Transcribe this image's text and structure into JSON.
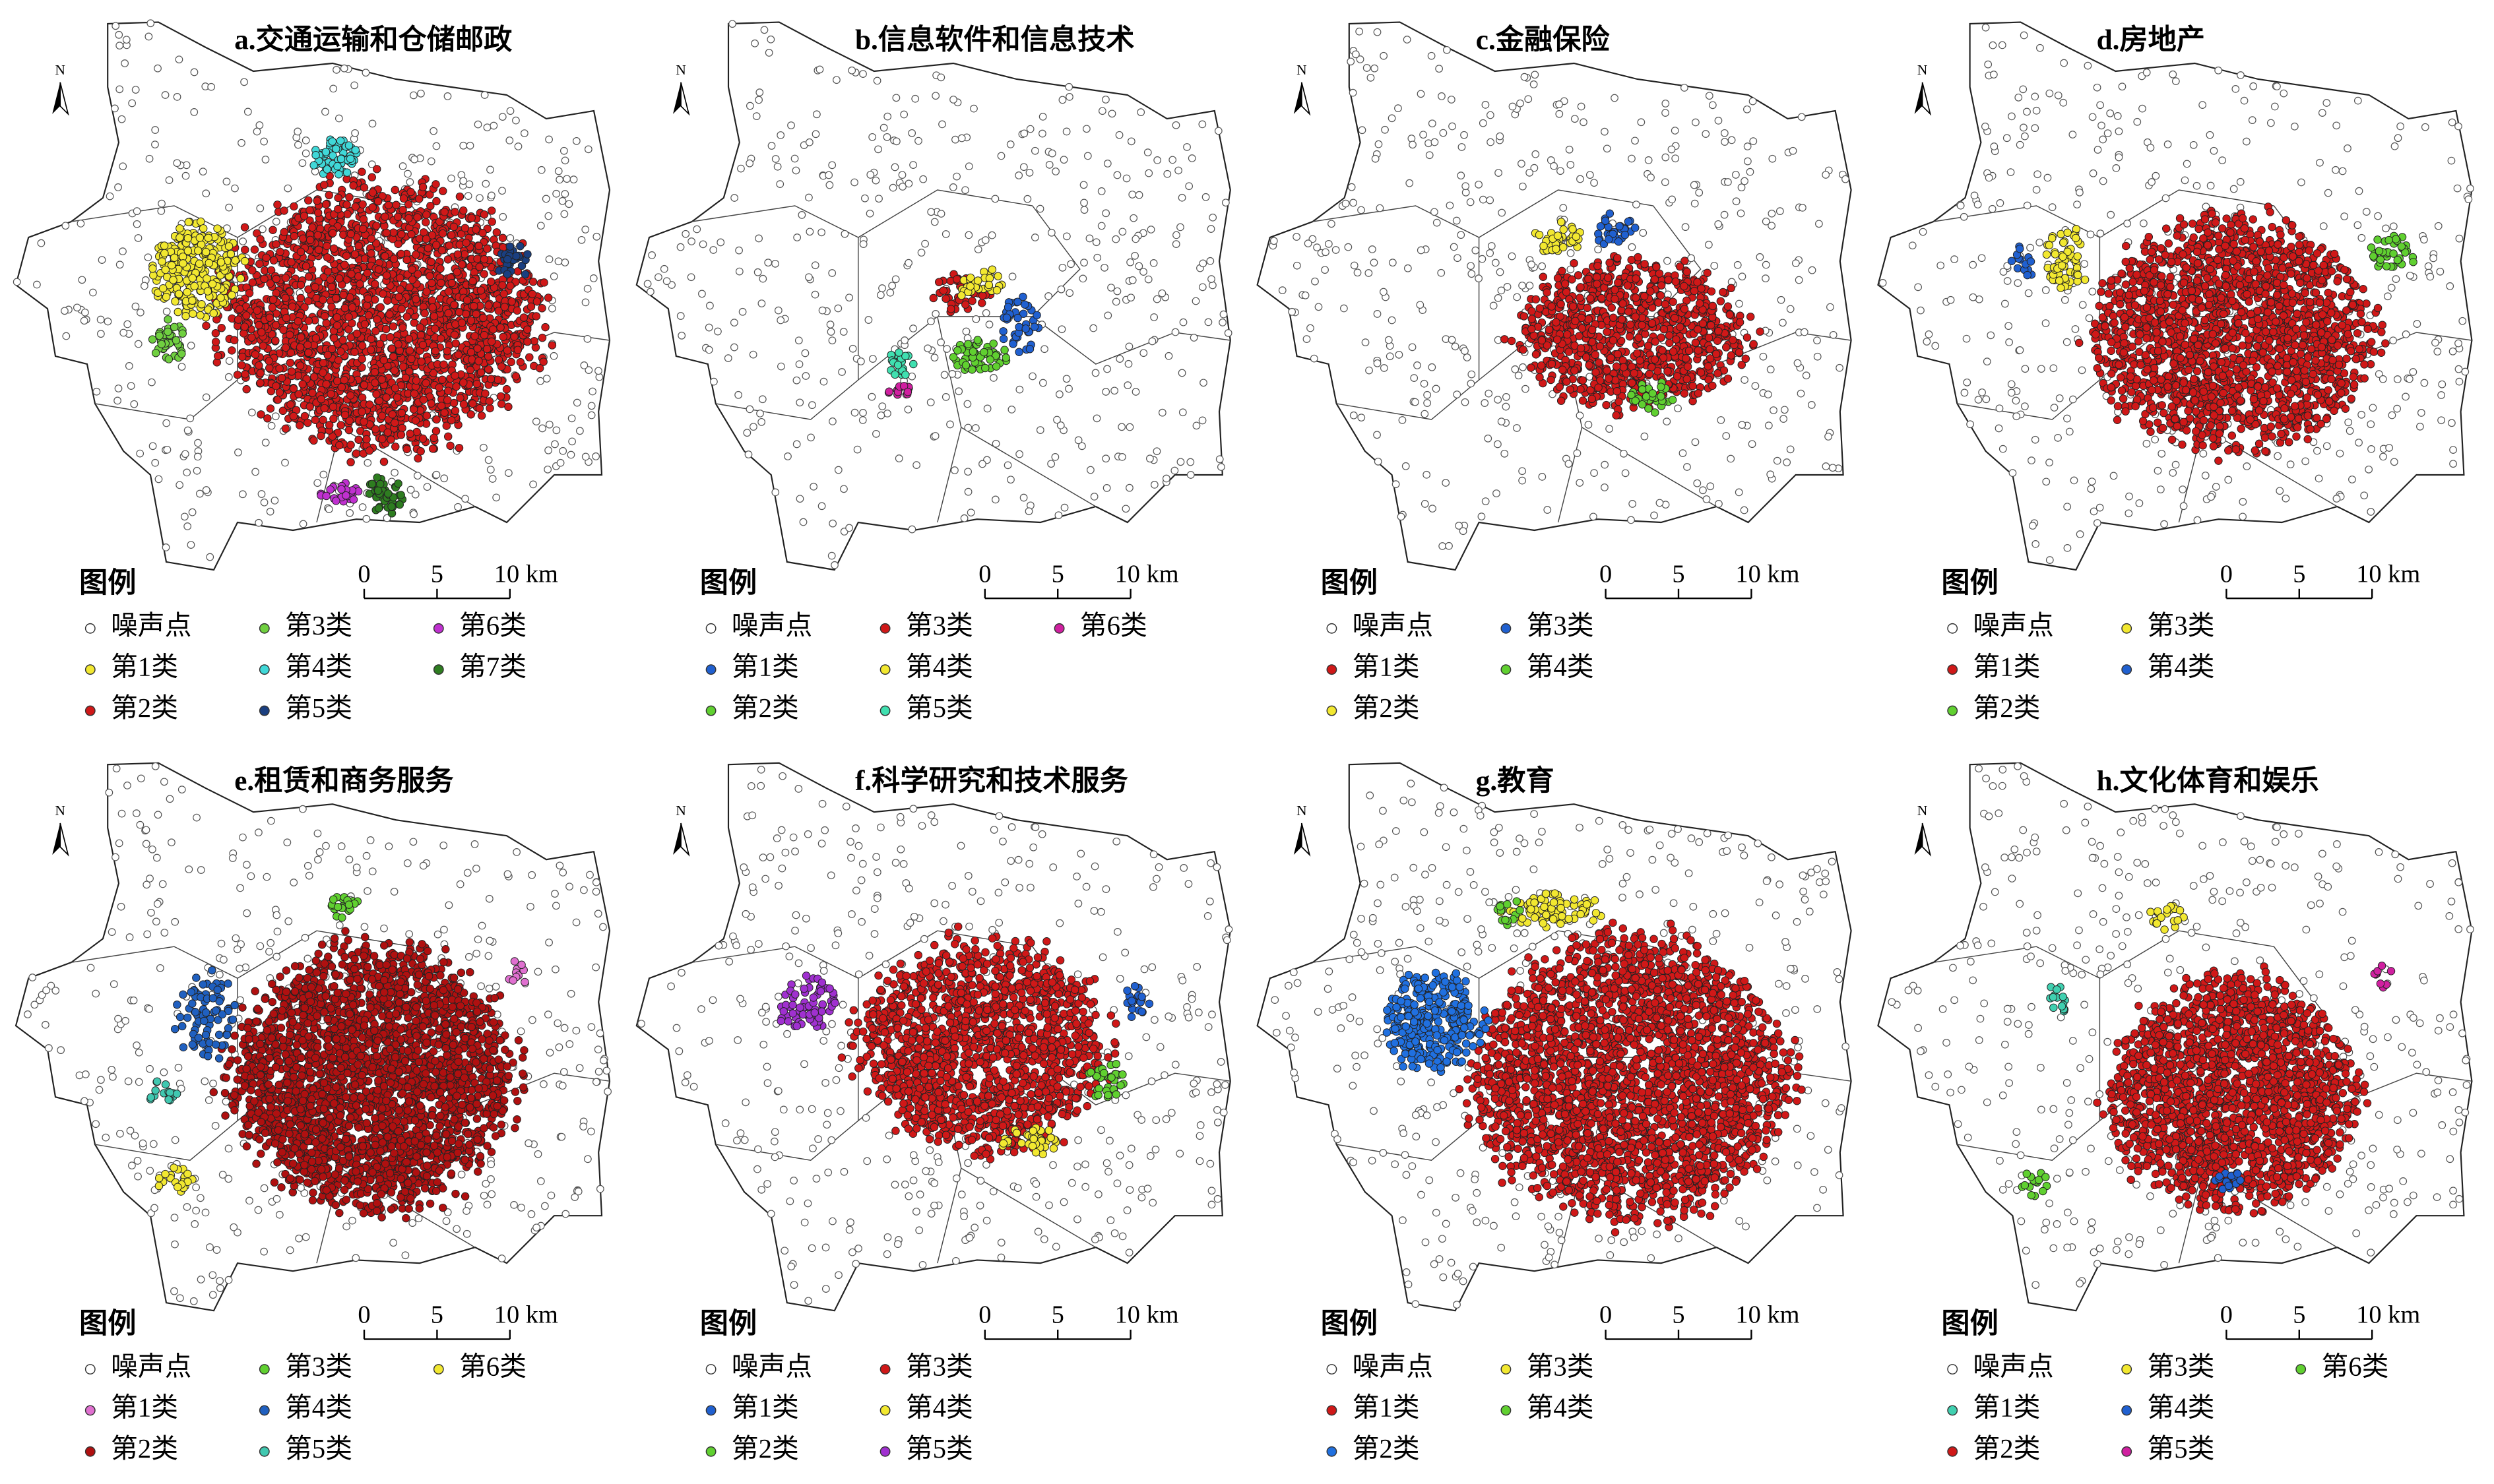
{
  "panels": [
    {
      "title": "a.交通运输和仓储邮政",
      "north": "N",
      "legend_title": "图例",
      "scale_labels": [
        "0",
        "5",
        "10 km"
      ],
      "legend": [
        {
          "label": "噪声点",
          "color": "#ffffff"
        },
        {
          "label": "第1类",
          "color": "#f2e830"
        },
        {
          "label": "第2类",
          "color": "#d01818"
        },
        {
          "label": "第3类",
          "color": "#70d040"
        },
        {
          "label": "第4类",
          "color": "#40d8d8"
        },
        {
          "label": "第5类",
          "color": "#1a3f80"
        },
        {
          "label": "第6类",
          "color": "#c030d0"
        },
        {
          "label": "第7类",
          "color": "#2e7d20"
        }
      ]
    },
    {
      "title": "b.信息软件和信息技术",
      "north": "N",
      "legend_title": "图例",
      "scale_labels": [
        "0",
        "5",
        "10 km"
      ],
      "legend": [
        {
          "label": "噪声点",
          "color": "#ffffff"
        },
        {
          "label": "第1类",
          "color": "#2060d0"
        },
        {
          "label": "第2类",
          "color": "#60d030"
        },
        {
          "label": "第3类",
          "color": "#d01818"
        },
        {
          "label": "第4类",
          "color": "#f2e830"
        },
        {
          "label": "第5类",
          "color": "#40e0b0"
        },
        {
          "label": "第6类",
          "color": "#d020a0"
        }
      ]
    },
    {
      "title": "c.金融保险",
      "north": "N",
      "legend_title": "图例",
      "scale_labels": [
        "0",
        "5",
        "10 km"
      ],
      "legend": [
        {
          "label": "噪声点",
          "color": "#ffffff"
        },
        {
          "label": "第1类",
          "color": "#d01818"
        },
        {
          "label": "第2类",
          "color": "#f2e830"
        },
        {
          "label": "第3类",
          "color": "#2060d0"
        },
        {
          "label": "第4类",
          "color": "#60d030"
        }
      ]
    },
    {
      "title": "d.房地产",
      "north": "N",
      "legend_title": "图例",
      "scale_labels": [
        "0",
        "5",
        "10 km"
      ],
      "legend": [
        {
          "label": "噪声点",
          "color": "#ffffff"
        },
        {
          "label": "第1类",
          "color": "#d01818"
        },
        {
          "label": "第2类",
          "color": "#60d030"
        },
        {
          "label": "第3类",
          "color": "#f2e830"
        },
        {
          "label": "第4类",
          "color": "#2060d0"
        }
      ]
    },
    {
      "title": "e.租赁和商务服务",
      "north": "N",
      "legend_title": "图例",
      "scale_labels": [
        "0",
        "5",
        "10 km"
      ],
      "legend": [
        {
          "label": "噪声点",
          "color": "#ffffff"
        },
        {
          "label": "第1类",
          "color": "#e070d0"
        },
        {
          "label": "第2类",
          "color": "#b01010"
        },
        {
          "label": "第3类",
          "color": "#60d030"
        },
        {
          "label": "第4类",
          "color": "#2060c0"
        },
        {
          "label": "第5类",
          "color": "#40c8b0"
        },
        {
          "label": "第6类",
          "color": "#f2e830"
        }
      ]
    },
    {
      "title": "f.科学研究和技术服务",
      "north": "N",
      "legend_title": "图例",
      "scale_labels": [
        "0",
        "5",
        "10 km"
      ],
      "legend": [
        {
          "label": "噪声点",
          "color": "#ffffff"
        },
        {
          "label": "第1类",
          "color": "#2060d0"
        },
        {
          "label": "第2类",
          "color": "#60d030"
        },
        {
          "label": "第3类",
          "color": "#d01818"
        },
        {
          "label": "第4类",
          "color": "#f2e830"
        },
        {
          "label": "第5类",
          "color": "#a030d0"
        }
      ]
    },
    {
      "title": "g.教育",
      "north": "N",
      "legend_title": "图例",
      "scale_labels": [
        "0",
        "5",
        "10 km"
      ],
      "legend": [
        {
          "label": "噪声点",
          "color": "#ffffff"
        },
        {
          "label": "第1类",
          "color": "#d01818"
        },
        {
          "label": "第2类",
          "color": "#2070e0"
        },
        {
          "label": "第3类",
          "color": "#f2e830"
        },
        {
          "label": "第4类",
          "color": "#60d030"
        }
      ]
    },
    {
      "title": "h.文化体育和娱乐",
      "north": "N",
      "legend_title": "图例",
      "scale_labels": [
        "0",
        "5",
        "10 km"
      ],
      "legend": [
        {
          "label": "噪声点",
          "color": "#ffffff"
        },
        {
          "label": "第1类",
          "color": "#40d0b0"
        },
        {
          "label": "第2类",
          "color": "#d01818"
        },
        {
          "label": "第3类",
          "color": "#f2e830"
        },
        {
          "label": "第4类",
          "color": "#2060d0"
        },
        {
          "label": "第5类",
          "color": "#d020a0"
        },
        {
          "label": "第6类",
          "color": "#60d030"
        }
      ]
    }
  ]
}
